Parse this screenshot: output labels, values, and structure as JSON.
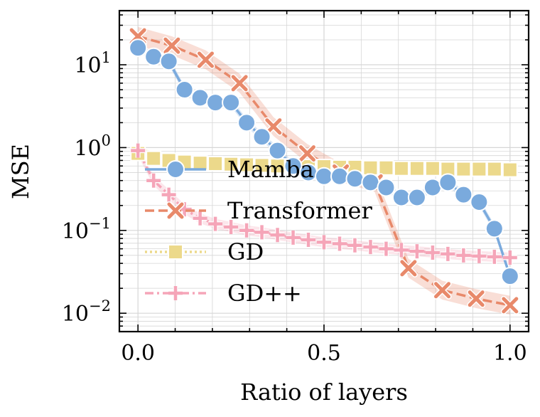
{
  "chart_data": {
    "type": "line",
    "title": "",
    "xlabel": "Ratio of layers",
    "ylabel": "MSE",
    "xlim": [
      -0.05,
      1.05
    ],
    "ylim": [
      0.006,
      45
    ],
    "yscale": "log",
    "grid": true,
    "legend_position": "center",
    "x_ticks": [
      {
        "value": 0.0,
        "label": "0.0"
      },
      {
        "value": 0.5,
        "label": "0.5"
      },
      {
        "value": 1.0,
        "label": "1.0"
      }
    ],
    "y_ticks": [
      {
        "value": 0.01,
        "base": "10",
        "exp": "−2"
      },
      {
        "value": 0.1,
        "base": "10",
        "exp": "−1"
      },
      {
        "value": 1,
        "base": "10",
        "exp": "0"
      },
      {
        "value": 10,
        "base": "10",
        "exp": "1"
      }
    ],
    "series": [
      {
        "name": "Mamba",
        "color": "#7aaadd",
        "marker": "circle",
        "linestyle": "solid",
        "x": [
          0.0,
          0.042,
          0.083,
          0.125,
          0.167,
          0.208,
          0.25,
          0.292,
          0.333,
          0.375,
          0.417,
          0.458,
          0.5,
          0.542,
          0.583,
          0.625,
          0.667,
          0.708,
          0.75,
          0.792,
          0.833,
          0.875,
          0.917,
          0.958,
          1.0
        ],
        "values": [
          16,
          12.5,
          11,
          5.0,
          4.0,
          3.5,
          3.5,
          2.0,
          1.35,
          0.92,
          0.6,
          0.5,
          0.45,
          0.45,
          0.42,
          0.38,
          0.33,
          0.25,
          0.25,
          0.33,
          0.38,
          0.27,
          0.22,
          0.105,
          0.028
        ],
        "band_rel": 0.12
      },
      {
        "name": "Transformer",
        "color": "#e8896a",
        "marker": "x",
        "linestyle": "dashed",
        "x": [
          0.0,
          0.091,
          0.182,
          0.273,
          0.364,
          0.455,
          0.545,
          0.636,
          0.727,
          0.818,
          0.909,
          1.0
        ],
        "values": [
          22,
          17,
          11.5,
          6.0,
          1.8,
          0.85,
          0.5,
          0.38,
          0.035,
          0.019,
          0.015,
          0.0125
        ],
        "band_rel": 0.3
      },
      {
        "name": "GD",
        "color": "#ecd98b",
        "marker": "square",
        "linestyle": "dotted",
        "x": [
          0.0,
          0.042,
          0.083,
          0.125,
          0.167,
          0.208,
          0.25,
          0.292,
          0.333,
          0.375,
          0.417,
          0.458,
          0.5,
          0.542,
          0.583,
          0.625,
          0.667,
          0.708,
          0.75,
          0.792,
          0.833,
          0.875,
          0.917,
          0.958,
          1.0
        ],
        "values": [
          0.85,
          0.74,
          0.7,
          0.67,
          0.65,
          0.64,
          0.63,
          0.62,
          0.61,
          0.6,
          0.6,
          0.59,
          0.59,
          0.58,
          0.58,
          0.57,
          0.57,
          0.56,
          0.56,
          0.56,
          0.55,
          0.55,
          0.55,
          0.55,
          0.54
        ],
        "band_rel": 0.2
      },
      {
        "name": "GD++",
        "color": "#f5a5b8",
        "marker": "plus",
        "linestyle": "dashdot",
        "x": [
          0.0,
          0.042,
          0.083,
          0.125,
          0.167,
          0.208,
          0.25,
          0.292,
          0.333,
          0.375,
          0.417,
          0.458,
          0.5,
          0.542,
          0.583,
          0.625,
          0.667,
          0.708,
          0.75,
          0.792,
          0.833,
          0.875,
          0.917,
          0.958,
          1.0
        ],
        "values": [
          0.92,
          0.4,
          0.27,
          0.18,
          0.14,
          0.12,
          0.11,
          0.1,
          0.095,
          0.088,
          0.082,
          0.077,
          0.072,
          0.069,
          0.066,
          0.063,
          0.06,
          0.058,
          0.056,
          0.054,
          0.052,
          0.05,
          0.049,
          0.048,
          0.047
        ],
        "band_rel": 0.15
      }
    ]
  }
}
